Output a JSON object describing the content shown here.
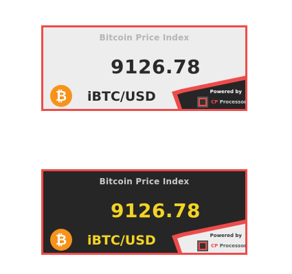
{
  "widgets": [
    {
      "theme": "light",
      "title": "Bitcoin Price Index",
      "price": "9126.78",
      "pair": "iBTC/USD",
      "coin_symbol": "₿",
      "powered_by": "Powered by",
      "brand_cp": "CP",
      "brand_name": "Processor"
    },
    {
      "theme": "dark",
      "title": "Bitcoin Price Index",
      "price": "9126.78",
      "pair": "iBTC/USD",
      "coin_symbol": "₿",
      "powered_by": "Powered by",
      "brand_cp": "CP",
      "brand_name": "Processor"
    }
  ],
  "colors": {
    "border": "#ee4b4b",
    "light_bg": "#ededed",
    "dark_bg": "#262626",
    "accent_yellow": "#f3d424",
    "bitcoin_orange": "#f7931a"
  }
}
